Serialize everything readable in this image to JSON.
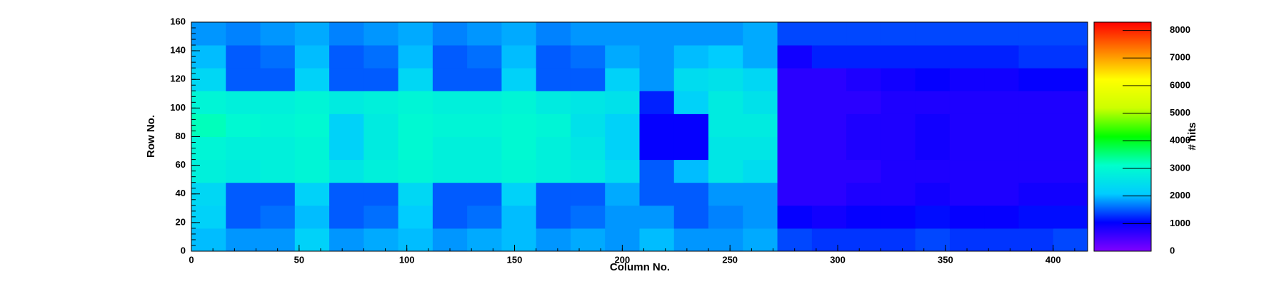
{
  "chart_data": {
    "type": "heatmap",
    "x_label": "Column No.",
    "y_label": "Row No.",
    "z_label": "# hits",
    "xlim": [
      0,
      416
    ],
    "ylim": [
      0,
      160
    ],
    "zlim": [
      0,
      8300
    ],
    "xticks": [
      0,
      50,
      100,
      150,
      200,
      250,
      300,
      350,
      400
    ],
    "yticks": [
      0,
      20,
      40,
      60,
      80,
      100,
      120,
      140,
      160
    ],
    "zticks": [
      0,
      1000,
      2000,
      3000,
      4000,
      5000,
      6000,
      7000,
      8000
    ],
    "colorscale": [
      "#8000ff",
      "#0000ff",
      "#00ccff",
      "#00ffcc",
      "#00ff00",
      "#ccff00",
      "#ffff00",
      "#ff8000",
      "#ff0000"
    ],
    "xbins": [
      0,
      16,
      32,
      48,
      64,
      80,
      96,
      112,
      128,
      144,
      160,
      176,
      192,
      208,
      224,
      240,
      256,
      272,
      288,
      304,
      320,
      336,
      352,
      368,
      384,
      400,
      416
    ],
    "ybins": [
      0,
      16,
      32,
      48,
      64,
      80,
      96,
      112,
      128,
      144,
      160
    ],
    "z": [
      [
        2000,
        1800,
        1800,
        2200,
        1800,
        1900,
        2000,
        1800,
        1900,
        2000,
        1800,
        1900,
        1800,
        2000,
        1800,
        1800,
        1900,
        1400,
        1300,
        1300,
        1300,
        1400,
        1300,
        1300,
        1300,
        1400
      ],
      [
        2200,
        1500,
        1600,
        2000,
        1500,
        1600,
        2100,
        1500,
        1600,
        2000,
        1500,
        1600,
        1800,
        1800,
        1500,
        1700,
        1800,
        1000,
        900,
        1000,
        1000,
        1100,
        1000,
        1000,
        1100,
        1100
      ],
      [
        2300,
        1500,
        1500,
        2200,
        1500,
        1500,
        2300,
        1500,
        1500,
        2200,
        1500,
        1500,
        1900,
        1500,
        1500,
        1800,
        1800,
        700,
        700,
        800,
        800,
        900,
        800,
        800,
        900,
        900
      ],
      [
        2800,
        2700,
        2800,
        2900,
        2600,
        2800,
        2900,
        2800,
        2800,
        2900,
        2800,
        2700,
        2400,
        1500,
        2000,
        2600,
        2400,
        700,
        700,
        700,
        800,
        800,
        800,
        800,
        800,
        800
      ],
      [
        2900,
        2800,
        2800,
        2900,
        2200,
        2700,
        3000,
        2800,
        2800,
        3000,
        2800,
        2600,
        2200,
        1000,
        1000,
        2600,
        2600,
        700,
        700,
        800,
        800,
        900,
        800,
        800,
        800,
        800
      ],
      [
        3200,
        3000,
        2900,
        3000,
        2200,
        2700,
        3000,
        2900,
        2900,
        3000,
        2900,
        2500,
        2200,
        1000,
        1000,
        2700,
        2700,
        700,
        700,
        800,
        800,
        900,
        800,
        800,
        800,
        800
      ],
      [
        2900,
        2800,
        2800,
        2900,
        2700,
        2800,
        2900,
        2800,
        2800,
        2900,
        2700,
        2600,
        2500,
        1200,
        2200,
        2700,
        2500,
        700,
        700,
        700,
        800,
        800,
        800,
        800,
        800,
        800
      ],
      [
        2300,
        1500,
        1500,
        2200,
        1500,
        1500,
        2300,
        1500,
        1500,
        2200,
        1500,
        1500,
        2200,
        1800,
        2400,
        2500,
        2300,
        700,
        700,
        800,
        900,
        1000,
        900,
        900,
        1000,
        1000
      ],
      [
        2000,
        1500,
        1600,
        2000,
        1500,
        1600,
        2000,
        1500,
        1600,
        2000,
        1500,
        1600,
        1900,
        1800,
        2000,
        2100,
        1900,
        900,
        1200,
        1200,
        1200,
        1200,
        1200,
        1200,
        1300,
        1300
      ],
      [
        1800,
        1700,
        1800,
        1900,
        1700,
        1800,
        1900,
        1700,
        1800,
        1900,
        1700,
        1800,
        1800,
        1800,
        1800,
        1800,
        1900,
        1400,
        1400,
        1400,
        1400,
        1400,
        1400,
        1400,
        1400,
        1400
      ]
    ]
  }
}
